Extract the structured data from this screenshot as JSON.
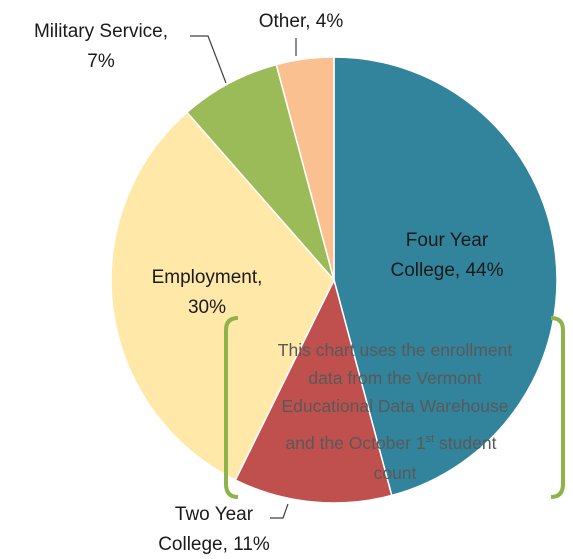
{
  "chart_data": {
    "type": "pie",
    "title": "",
    "slices": [
      {
        "label": "Four Year College",
        "value": 44,
        "display": [
          "Four Year",
          "College, 44%"
        ],
        "color": "#31849B"
      },
      {
        "label": "Two Year College",
        "value": 11,
        "display": [
          "Two Year",
          "College, 11%"
        ],
        "color": "#C0504D"
      },
      {
        "label": "Employment",
        "value": 30,
        "display": [
          "Employment,",
          "30%"
        ],
        "color": "#FFE8A8"
      },
      {
        "label": "Military Service",
        "value": 7,
        "display": [
          "Military Service,",
          "7%"
        ],
        "color": "#9BBB59"
      },
      {
        "label": "Other",
        "value": 4,
        "display": [
          "Other, 4%"
        ],
        "color": "#FAC090"
      }
    ],
    "annotation": {
      "lines": [
        "This chart uses the enrollment",
        "data from the Vermont",
        "Educational Data Warehouse"
      ],
      "line4_pre": "and the October 1",
      "line4_sup": "st",
      "line4_post": " student",
      "line5": "count",
      "bracket_color": "#8DB34A"
    }
  }
}
